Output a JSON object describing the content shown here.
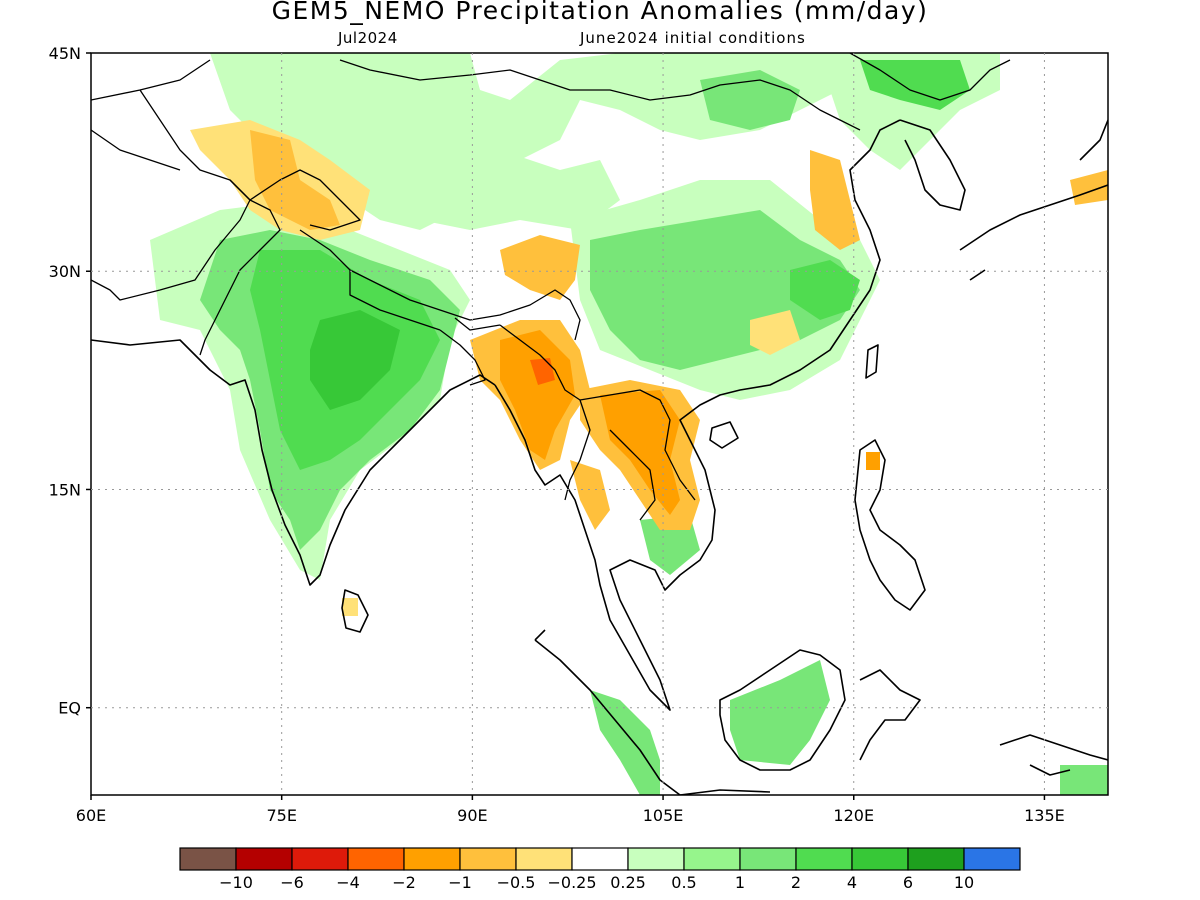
{
  "title": "GEM5_NEMO Precipitation Anomalies (mm/day)",
  "subtitle_left": "Jul2024",
  "subtitle_right": "June2024 initial conditions",
  "map": {
    "lon_range": [
      60,
      140
    ],
    "lat_range": [
      -6,
      45
    ],
    "lat_labels": [
      {
        "lat": 45,
        "text": "45N"
      },
      {
        "lat": 30,
        "text": "30N"
      },
      {
        "lat": 15,
        "text": "15N"
      },
      {
        "lat": 0,
        "text": "EQ"
      }
    ],
    "lon_labels": [
      {
        "lon": 60,
        "text": "60E"
      },
      {
        "lon": 75,
        "text": "75E"
      },
      {
        "lon": 90,
        "text": "90E"
      },
      {
        "lon": 105,
        "text": "105E"
      },
      {
        "lon": 120,
        "text": "120E"
      },
      {
        "lon": 135,
        "text": "135E"
      }
    ],
    "grid_lats": [
      30,
      15,
      0
    ],
    "grid_lons": [
      75,
      90,
      105,
      120,
      135
    ]
  },
  "legend": {
    "colors": [
      "#7a5346",
      "#b40000",
      "#de1a0a",
      "#ff6400",
      "#ffa000",
      "#ffc03c",
      "#ffe178",
      "#ffffff",
      "#c8ffbe",
      "#96f58c",
      "#78e678",
      "#50dc50",
      "#37c837",
      "#1ea01e",
      "#2a75e6"
    ],
    "labels": [
      "-10",
      "-6",
      "-4",
      "-2",
      "-1",
      "-0.5",
      "-0.25",
      "0.25",
      "0.5",
      "1",
      "2",
      "4",
      "6",
      "10"
    ]
  },
  "palette": {
    "light_green": "#c8ffbe",
    "mid_green": "#96f58c",
    "green": "#78e678",
    "bright_green": "#50dc50",
    "dark_green": "#37c837",
    "yellow": "#ffe178",
    "light_orange": "#ffc03c",
    "orange": "#ffa000",
    "red_orange": "#ff6400"
  }
}
